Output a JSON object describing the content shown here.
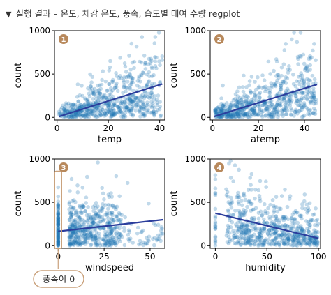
{
  "header": {
    "marker": "▼",
    "title": "실행 결과 – 온도, 체감 온도, 풍속, 습도별 대여 수량 regplot"
  },
  "colors": {
    "points": "#1f77b4",
    "line": "#2b3d9c",
    "badge": "#b8895c",
    "highlight": "#c9a07a"
  },
  "callout": {
    "text": "풍속이 0"
  },
  "chart_data": [
    {
      "type": "scatter",
      "badge": "1",
      "xlabel": "temp",
      "ylabel": "count",
      "xlim": [
        -1,
        42
      ],
      "ylim": [
        -30,
        1000
      ],
      "xticks": [
        0,
        20,
        40
      ],
      "yticks": [
        0,
        500,
        1000
      ],
      "regression": {
        "x": [
          0.8,
          41
        ],
        "y": [
          10,
          385
        ]
      },
      "point_cloud": "dense scatter, count rises with temp; max ~977 near temp 30-35"
    },
    {
      "type": "scatter",
      "badge": "2",
      "xlabel": "atemp",
      "ylabel": "count",
      "xlim": [
        -1,
        47
      ],
      "ylim": [
        -30,
        1000
      ],
      "xticks": [
        0,
        20,
        40
      ],
      "yticks": [
        0,
        500,
        1000
      ],
      "regression": {
        "x": [
          0.8,
          45.5
        ],
        "y": [
          10,
          380
        ]
      },
      "point_cloud": "dense scatter, count rises with atemp; max ~977 near atemp 30-38"
    },
    {
      "type": "scatter",
      "badge": "3",
      "xlabel": "windspeed",
      "ylabel": "count",
      "xlim": [
        -2,
        58
      ],
      "ylim": [
        -30,
        1000
      ],
      "xticks": [
        0,
        25,
        50
      ],
      "yticks": [
        0,
        500,
        1000
      ],
      "regression": {
        "x": [
          0,
          57
        ],
        "y": [
          165,
          300
        ]
      },
      "point_cloud": "many points at windspeed 0 (highlighted), dense 6-30, sparse beyond 40"
    },
    {
      "type": "scatter",
      "badge": "4",
      "xlabel": "humidity",
      "ylabel": "count",
      "xlim": [
        -5,
        102
      ],
      "ylim": [
        -30,
        1000
      ],
      "xticks": [
        0,
        50,
        100
      ],
      "yticks": [
        0,
        500,
        1000
      ],
      "regression": {
        "x": [
          0,
          100
        ],
        "y": [
          375,
          85
        ]
      },
      "point_cloud": "dense scatter, count declines with humidity; cluster at humidity 0"
    }
  ]
}
